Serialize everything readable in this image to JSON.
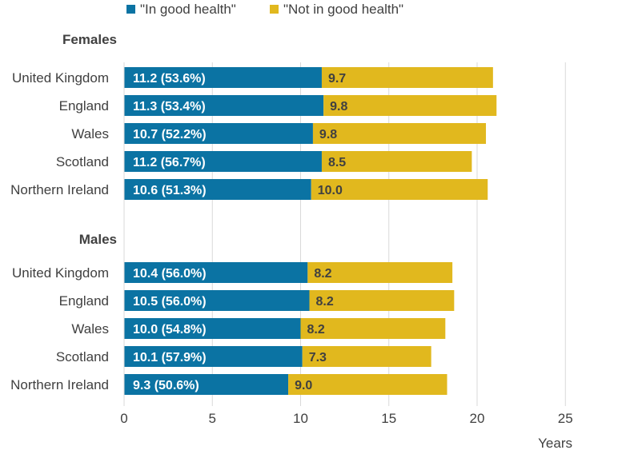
{
  "chart_data": {
    "type": "bar",
    "orientation": "horizontal",
    "stacked": true,
    "xlim": [
      0,
      25
    ],
    "x_ticks": [
      "0",
      "5",
      "10",
      "15",
      "20",
      "25"
    ],
    "xlabel": "Years",
    "grid": "vertical gridlines",
    "legend_position": "top",
    "series": [
      {
        "name": "\"In good health\"",
        "color": "#0b73a3"
      },
      {
        "name": "\"Not in good health\"",
        "color": "#e1b81e"
      }
    ],
    "groups": [
      {
        "name": "Females",
        "rows": [
          {
            "category": "United Kingdom",
            "in_good": 11.2,
            "in_good_label": "11.2 (53.6%)",
            "not_good": 9.7,
            "not_good_label": "9.7"
          },
          {
            "category": "England",
            "in_good": 11.3,
            "in_good_label": "11.3 (53.4%)",
            "not_good": 9.8,
            "not_good_label": "9.8"
          },
          {
            "category": "Wales",
            "in_good": 10.7,
            "in_good_label": "10.7 (52.2%)",
            "not_good": 9.8,
            "not_good_label": "9.8"
          },
          {
            "category": "Scotland",
            "in_good": 11.2,
            "in_good_label": "11.2 (56.7%)",
            "not_good": 8.5,
            "not_good_label": "8.5"
          },
          {
            "category": "Northern Ireland",
            "in_good": 10.6,
            "in_good_label": "10.6 (51.3%)",
            "not_good": 10.0,
            "not_good_label": "10.0"
          }
        ]
      },
      {
        "name": "Males",
        "rows": [
          {
            "category": "United Kingdom",
            "in_good": 10.4,
            "in_good_label": "10.4 (56.0%)",
            "not_good": 8.2,
            "not_good_label": "8.2"
          },
          {
            "category": "England",
            "in_good": 10.5,
            "in_good_label": "10.5 (56.0%)",
            "not_good": 8.2,
            "not_good_label": "8.2"
          },
          {
            "category": "Wales",
            "in_good": 10.0,
            "in_good_label": "10.0 (54.8%)",
            "not_good": 8.2,
            "not_good_label": "8.2"
          },
          {
            "category": "Scotland",
            "in_good": 10.1,
            "in_good_label": "10.1 (57.9%)",
            "not_good": 7.3,
            "not_good_label": "7.3"
          },
          {
            "category": "Northern Ireland",
            "in_good": 9.3,
            "in_good_label": "9.3 (50.6%)",
            "not_good": 9.0,
            "not_good_label": "9.0"
          }
        ]
      }
    ]
  }
}
